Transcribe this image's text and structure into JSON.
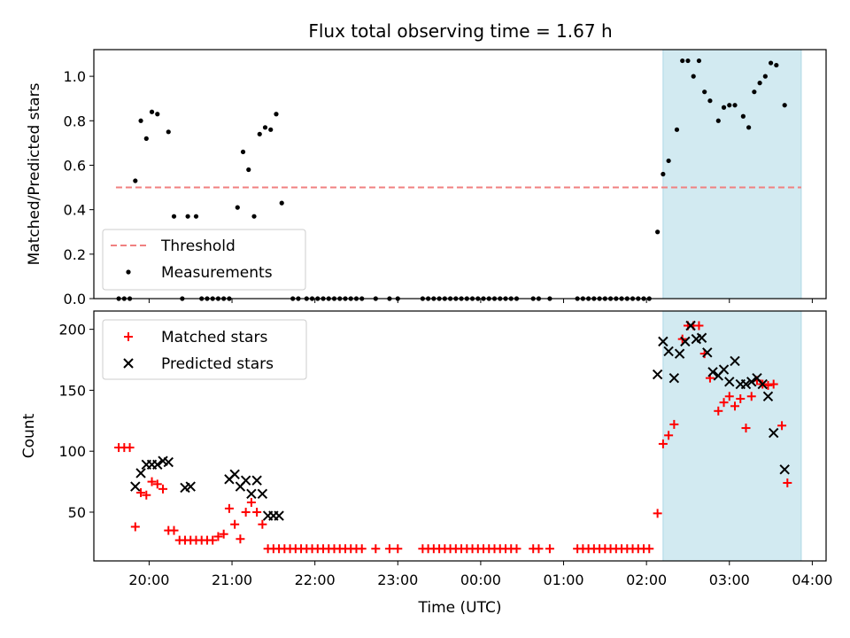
{
  "chart_data": [
    {
      "type": "scatter",
      "title": "Flux total observing time = 1.67 h",
      "xlabel": "",
      "ylabel": "Matched/Predicted stars",
      "xlim": [
        "19:20",
        "04:10"
      ],
      "ylim": [
        0.0,
        1.12
      ],
      "yticks": [
        0.0,
        0.2,
        0.4,
        0.6,
        0.8,
        1.0
      ],
      "ytick_labels": [
        "0.0",
        "0.2",
        "0.4",
        "0.6",
        "0.8",
        "1.0"
      ],
      "grid": false,
      "legend_position": "lower-left",
      "shaded_span": {
        "x": [
          "02:12",
          "03:52"
        ],
        "color": "#add8e6"
      },
      "threshold": {
        "name": "Threshold",
        "value": 0.5,
        "x": [
          "19:36",
          "03:52"
        ],
        "style": "dashed",
        "color": "#f08080"
      },
      "series": [
        {
          "name": "Measurements",
          "marker": "dot",
          "color": "#000000",
          "points": [
            [
              "19:38",
              0
            ],
            [
              "19:42",
              0
            ],
            [
              "19:46",
              0
            ],
            [
              "19:50",
              0.53
            ],
            [
              "19:54",
              0.8
            ],
            [
              "19:58",
              0.72
            ],
            [
              "20:02",
              0.84
            ],
            [
              "20:06",
              0.83
            ],
            [
              "20:14",
              0.75
            ],
            [
              "20:18",
              0.37
            ],
            [
              "20:24",
              0
            ],
            [
              "20:28",
              0.37
            ],
            [
              "20:34",
              0.37
            ],
            [
              "20:38",
              0
            ],
            [
              "20:42",
              0
            ],
            [
              "20:46",
              0
            ],
            [
              "20:50",
              0
            ],
            [
              "20:54",
              0
            ],
            [
              "20:58",
              0
            ],
            [
              "21:04",
              0.41
            ],
            [
              "21:08",
              0.66
            ],
            [
              "21:12",
              0.58
            ],
            [
              "21:16",
              0.37
            ],
            [
              "21:20",
              0.74
            ],
            [
              "21:24",
              0.77
            ],
            [
              "21:28",
              0.76
            ],
            [
              "21:32",
              0.83
            ],
            [
              "21:36",
              0.43
            ],
            [
              "21:44",
              0
            ],
            [
              "21:48",
              0
            ],
            [
              "21:54",
              0
            ],
            [
              "21:58",
              0
            ],
            [
              "22:02",
              0
            ],
            [
              "22:06",
              0
            ],
            [
              "22:10",
              0
            ],
            [
              "22:14",
              0
            ],
            [
              "22:18",
              0
            ],
            [
              "22:22",
              0
            ],
            [
              "22:26",
              0
            ],
            [
              "22:30",
              0
            ],
            [
              "22:34",
              0
            ],
            [
              "22:44",
              0
            ],
            [
              "22:54",
              0
            ],
            [
              "23:00",
              0
            ],
            [
              "23:18",
              0
            ],
            [
              "23:22",
              0
            ],
            [
              "23:26",
              0
            ],
            [
              "23:30",
              0
            ],
            [
              "23:34",
              0
            ],
            [
              "23:38",
              0
            ],
            [
              "23:42",
              0
            ],
            [
              "23:46",
              0
            ],
            [
              "23:50",
              0
            ],
            [
              "23:54",
              0
            ],
            [
              "23:58",
              0
            ],
            [
              "00:02",
              0
            ],
            [
              "00:06",
              0
            ],
            [
              "00:10",
              0
            ],
            [
              "00:14",
              0
            ],
            [
              "00:18",
              0
            ],
            [
              "00:22",
              0
            ],
            [
              "00:26",
              0
            ],
            [
              "00:38",
              0
            ],
            [
              "00:42",
              0
            ],
            [
              "00:50",
              0
            ],
            [
              "01:10",
              0
            ],
            [
              "01:14",
              0
            ],
            [
              "01:18",
              0
            ],
            [
              "01:22",
              0
            ],
            [
              "01:26",
              0
            ],
            [
              "01:30",
              0
            ],
            [
              "01:34",
              0
            ],
            [
              "01:38",
              0
            ],
            [
              "01:42",
              0
            ],
            [
              "01:46",
              0
            ],
            [
              "01:50",
              0
            ],
            [
              "01:54",
              0
            ],
            [
              "01:58",
              0
            ],
            [
              "02:02",
              0
            ],
            [
              "02:08",
              0.3
            ],
            [
              "02:12",
              0.56
            ],
            [
              "02:16",
              0.62
            ],
            [
              "02:22",
              0.76
            ],
            [
              "02:26",
              1.07
            ],
            [
              "02:30",
              1.07
            ],
            [
              "02:34",
              1.0
            ],
            [
              "02:38",
              1.07
            ],
            [
              "02:42",
              0.93
            ],
            [
              "02:46",
              0.89
            ],
            [
              "02:52",
              0.8
            ],
            [
              "02:56",
              0.86
            ],
            [
              "03:00",
              0.87
            ],
            [
              "03:04",
              0.87
            ],
            [
              "03:10",
              0.82
            ],
            [
              "03:14",
              0.77
            ],
            [
              "03:18",
              0.93
            ],
            [
              "03:22",
              0.97
            ],
            [
              "03:26",
              1.0
            ],
            [
              "03:30",
              1.06
            ],
            [
              "03:34",
              1.05
            ],
            [
              "03:40",
              0.87
            ]
          ]
        }
      ]
    },
    {
      "type": "scatter",
      "title": "",
      "xlabel": "Time (UTC)",
      "ylabel": "Count",
      "xlim": [
        "19:20",
        "04:10"
      ],
      "ylim": [
        10,
        215
      ],
      "xticks": [
        "20:00",
        "21:00",
        "22:00",
        "23:00",
        "00:00",
        "01:00",
        "02:00",
        "03:00",
        "04:00"
      ],
      "yticks": [
        50,
        100,
        150,
        200
      ],
      "ytick_labels": [
        "50",
        "100",
        "150",
        "200"
      ],
      "grid": false,
      "legend_position": "upper-left",
      "shaded_span": {
        "x": [
          "02:12",
          "03:52"
        ],
        "color": "#add8e6"
      },
      "series": [
        {
          "name": "Matched stars",
          "marker": "plus",
          "color": "#ff0000",
          "points": [
            [
              "19:38",
              103
            ],
            [
              "19:42",
              103
            ],
            [
              "19:46",
              103
            ],
            [
              "19:50",
              38
            ],
            [
              "19:54",
              66
            ],
            [
              "19:58",
              64
            ],
            [
              "20:02",
              75
            ],
            [
              "20:06",
              73
            ],
            [
              "20:10",
              69
            ],
            [
              "20:14",
              35
            ],
            [
              "20:18",
              35
            ],
            [
              "20:22",
              27
            ],
            [
              "20:26",
              27
            ],
            [
              "20:30",
              27
            ],
            [
              "20:34",
              27
            ],
            [
              "20:38",
              27
            ],
            [
              "20:42",
              27
            ],
            [
              "20:46",
              27
            ],
            [
              "20:50",
              30
            ],
            [
              "20:54",
              32
            ],
            [
              "20:58",
              53
            ],
            [
              "21:02",
              40
            ],
            [
              "21:06",
              28
            ],
            [
              "21:10",
              50
            ],
            [
              "21:14",
              58
            ],
            [
              "21:18",
              50
            ],
            [
              "21:22",
              40
            ],
            [
              "21:26",
              20
            ],
            [
              "21:30",
              20
            ],
            [
              "21:34",
              20
            ],
            [
              "21:38",
              20
            ],
            [
              "21:42",
              20
            ],
            [
              "21:46",
              20
            ],
            [
              "21:50",
              20
            ],
            [
              "21:54",
              20
            ],
            [
              "21:58",
              20
            ],
            [
              "22:02",
              20
            ],
            [
              "22:06",
              20
            ],
            [
              "22:10",
              20
            ],
            [
              "22:14",
              20
            ],
            [
              "22:18",
              20
            ],
            [
              "22:22",
              20
            ],
            [
              "22:26",
              20
            ],
            [
              "22:30",
              20
            ],
            [
              "22:34",
              20
            ],
            [
              "22:44",
              20
            ],
            [
              "22:54",
              20
            ],
            [
              "23:00",
              20
            ],
            [
              "23:18",
              20
            ],
            [
              "23:22",
              20
            ],
            [
              "23:26",
              20
            ],
            [
              "23:30",
              20
            ],
            [
              "23:34",
              20
            ],
            [
              "23:38",
              20
            ],
            [
              "23:42",
              20
            ],
            [
              "23:46",
              20
            ],
            [
              "23:50",
              20
            ],
            [
              "23:54",
              20
            ],
            [
              "23:58",
              20
            ],
            [
              "00:02",
              20
            ],
            [
              "00:06",
              20
            ],
            [
              "00:10",
              20
            ],
            [
              "00:14",
              20
            ],
            [
              "00:18",
              20
            ],
            [
              "00:22",
              20
            ],
            [
              "00:26",
              20
            ],
            [
              "00:38",
              20
            ],
            [
              "00:42",
              20
            ],
            [
              "00:50",
              20
            ],
            [
              "01:10",
              20
            ],
            [
              "01:14",
              20
            ],
            [
              "01:18",
              20
            ],
            [
              "01:22",
              20
            ],
            [
              "01:26",
              20
            ],
            [
              "01:30",
              20
            ],
            [
              "01:34",
              20
            ],
            [
              "01:38",
              20
            ],
            [
              "01:42",
              20
            ],
            [
              "01:46",
              20
            ],
            [
              "01:50",
              20
            ],
            [
              "01:54",
              20
            ],
            [
              "01:58",
              20
            ],
            [
              "02:02",
              20
            ],
            [
              "02:08",
              49
            ],
            [
              "02:12",
              106
            ],
            [
              "02:16",
              113
            ],
            [
              "02:20",
              122
            ],
            [
              "02:26",
              192
            ],
            [
              "02:30",
              203
            ],
            [
              "02:34",
              203
            ],
            [
              "02:38",
              203
            ],
            [
              "02:42",
              180
            ],
            [
              "02:46",
              160
            ],
            [
              "02:52",
              133
            ],
            [
              "02:56",
              140
            ],
            [
              "03:00",
              145
            ],
            [
              "03:04",
              137
            ],
            [
              "03:08",
              143
            ],
            [
              "03:12",
              119
            ],
            [
              "03:16",
              145
            ],
            [
              "03:20",
              158
            ],
            [
              "03:24",
              155
            ],
            [
              "03:28",
              154
            ],
            [
              "03:32",
              155
            ],
            [
              "03:38",
              121
            ],
            [
              "03:42",
              74
            ]
          ]
        },
        {
          "name": "Predicted stars",
          "marker": "x",
          "color": "#000000",
          "points": [
            [
              "19:50",
              71
            ],
            [
              "19:54",
              82
            ],
            [
              "19:58",
              89
            ],
            [
              "20:02",
              89
            ],
            [
              "20:06",
              89
            ],
            [
              "20:10",
              92
            ],
            [
              "20:14",
              91
            ],
            [
              "20:26",
              70
            ],
            [
              "20:30",
              71
            ],
            [
              "20:58",
              77
            ],
            [
              "21:02",
              81
            ],
            [
              "21:06",
              71
            ],
            [
              "21:10",
              76
            ],
            [
              "21:14",
              65
            ],
            [
              "21:18",
              76
            ],
            [
              "21:22",
              65
            ],
            [
              "21:26",
              47
            ],
            [
              "21:30",
              47
            ],
            [
              "21:34",
              47
            ],
            [
              "02:08",
              163
            ],
            [
              "02:12",
              190
            ],
            [
              "02:16",
              182
            ],
            [
              "02:20",
              160
            ],
            [
              "02:24",
              180
            ],
            [
              "02:28",
              190
            ],
            [
              "02:32",
              203
            ],
            [
              "02:36",
              192
            ],
            [
              "02:40",
              193
            ],
            [
              "02:44",
              181
            ],
            [
              "02:48",
              165
            ],
            [
              "02:52",
              162
            ],
            [
              "02:56",
              167
            ],
            [
              "03:00",
              157
            ],
            [
              "03:04",
              174
            ],
            [
              "03:08",
              155
            ],
            [
              "03:12",
              155
            ],
            [
              "03:16",
              157
            ],
            [
              "03:20",
              160
            ],
            [
              "03:24",
              155
            ],
            [
              "03:28",
              145
            ],
            [
              "03:32",
              115
            ],
            [
              "03:40",
              85
            ]
          ]
        }
      ]
    }
  ]
}
